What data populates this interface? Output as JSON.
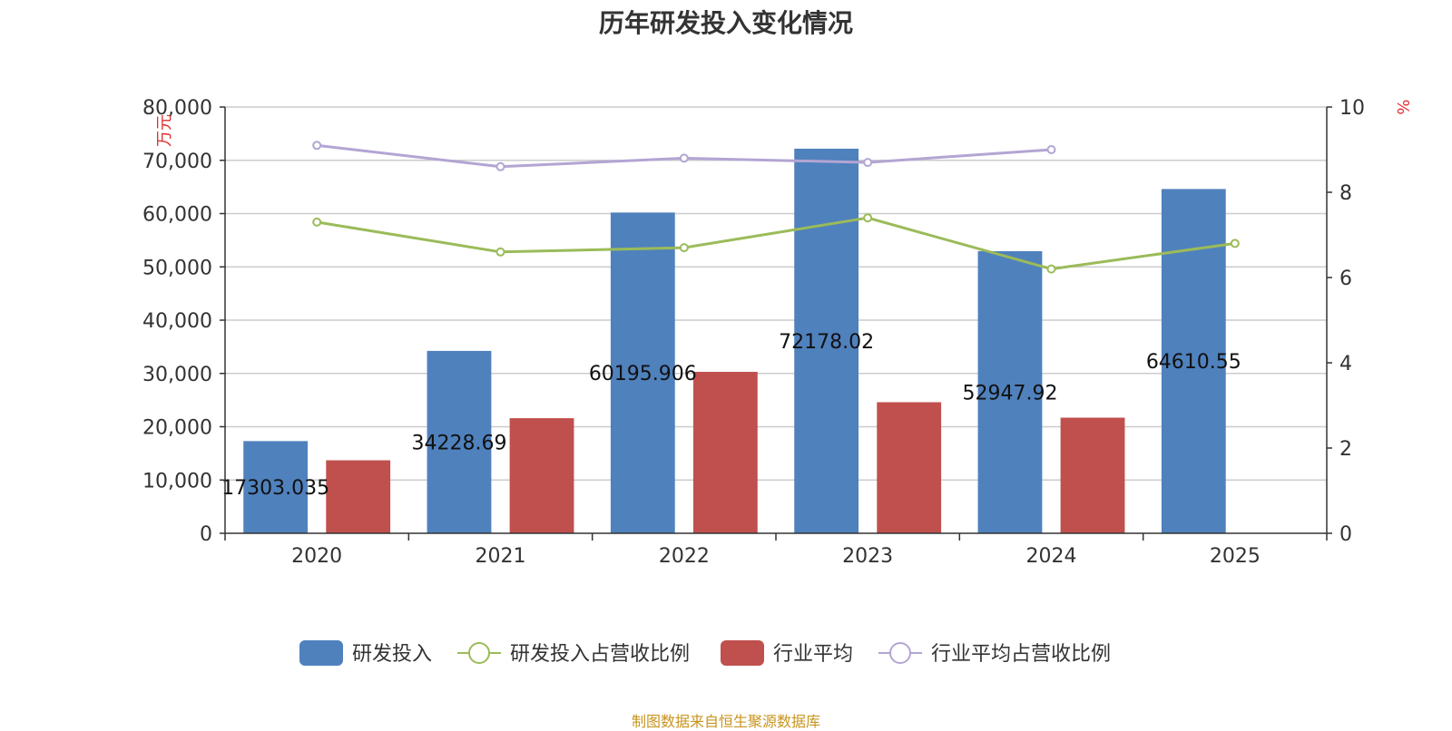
{
  "title": "历年研发投入变化情况",
  "source": "制图数据来自恒生聚源数据库",
  "colors": {
    "rd": "#4f81bd",
    "rd_ratio": "#9bbb59",
    "ind": "#c0504d",
    "ind_ratio": "#b3a5d3",
    "unit": "#e03030",
    "axis": "#333333",
    "grid": "#cccccc"
  },
  "chart_data": {
    "type": "bar",
    "categories": [
      "2020",
      "2021",
      "2022",
      "2023",
      "2024",
      "2025"
    ],
    "y_left": {
      "label": "万元",
      "ylim": [
        0,
        80000
      ],
      "ticks": [
        "0",
        "10,000",
        "20,000",
        "30,000",
        "40,000",
        "50,000",
        "60,000",
        "70,000",
        "80,000"
      ]
    },
    "y_right": {
      "label": "%",
      "ylim": [
        0,
        10
      ],
      "ticks": [
        "0",
        "2",
        "4",
        "6",
        "8",
        "10"
      ]
    },
    "series": [
      {
        "name": "研发投入",
        "type": "bar",
        "axis": "left",
        "values": [
          17303.035,
          34228.69,
          60195.906,
          72178.02,
          52947.92,
          64610.55
        ],
        "labels": [
          "17303.035",
          "34228.69",
          "60195.906",
          "72178.02",
          "52947.92",
          "64610.55"
        ]
      },
      {
        "name": "研发投入占营收比例",
        "type": "line",
        "axis": "right",
        "values": [
          7.3,
          6.6,
          6.7,
          7.4,
          6.2,
          6.8
        ]
      },
      {
        "name": "行业平均",
        "type": "bar",
        "axis": "left",
        "values": [
          13700,
          21600,
          30300,
          24600,
          21700,
          null
        ]
      },
      {
        "name": "行业平均占营收比例",
        "type": "line",
        "axis": "right",
        "values": [
          9.1,
          8.6,
          8.8,
          8.7,
          9.0,
          null
        ]
      }
    ],
    "grid": true,
    "legend": "bottom"
  }
}
